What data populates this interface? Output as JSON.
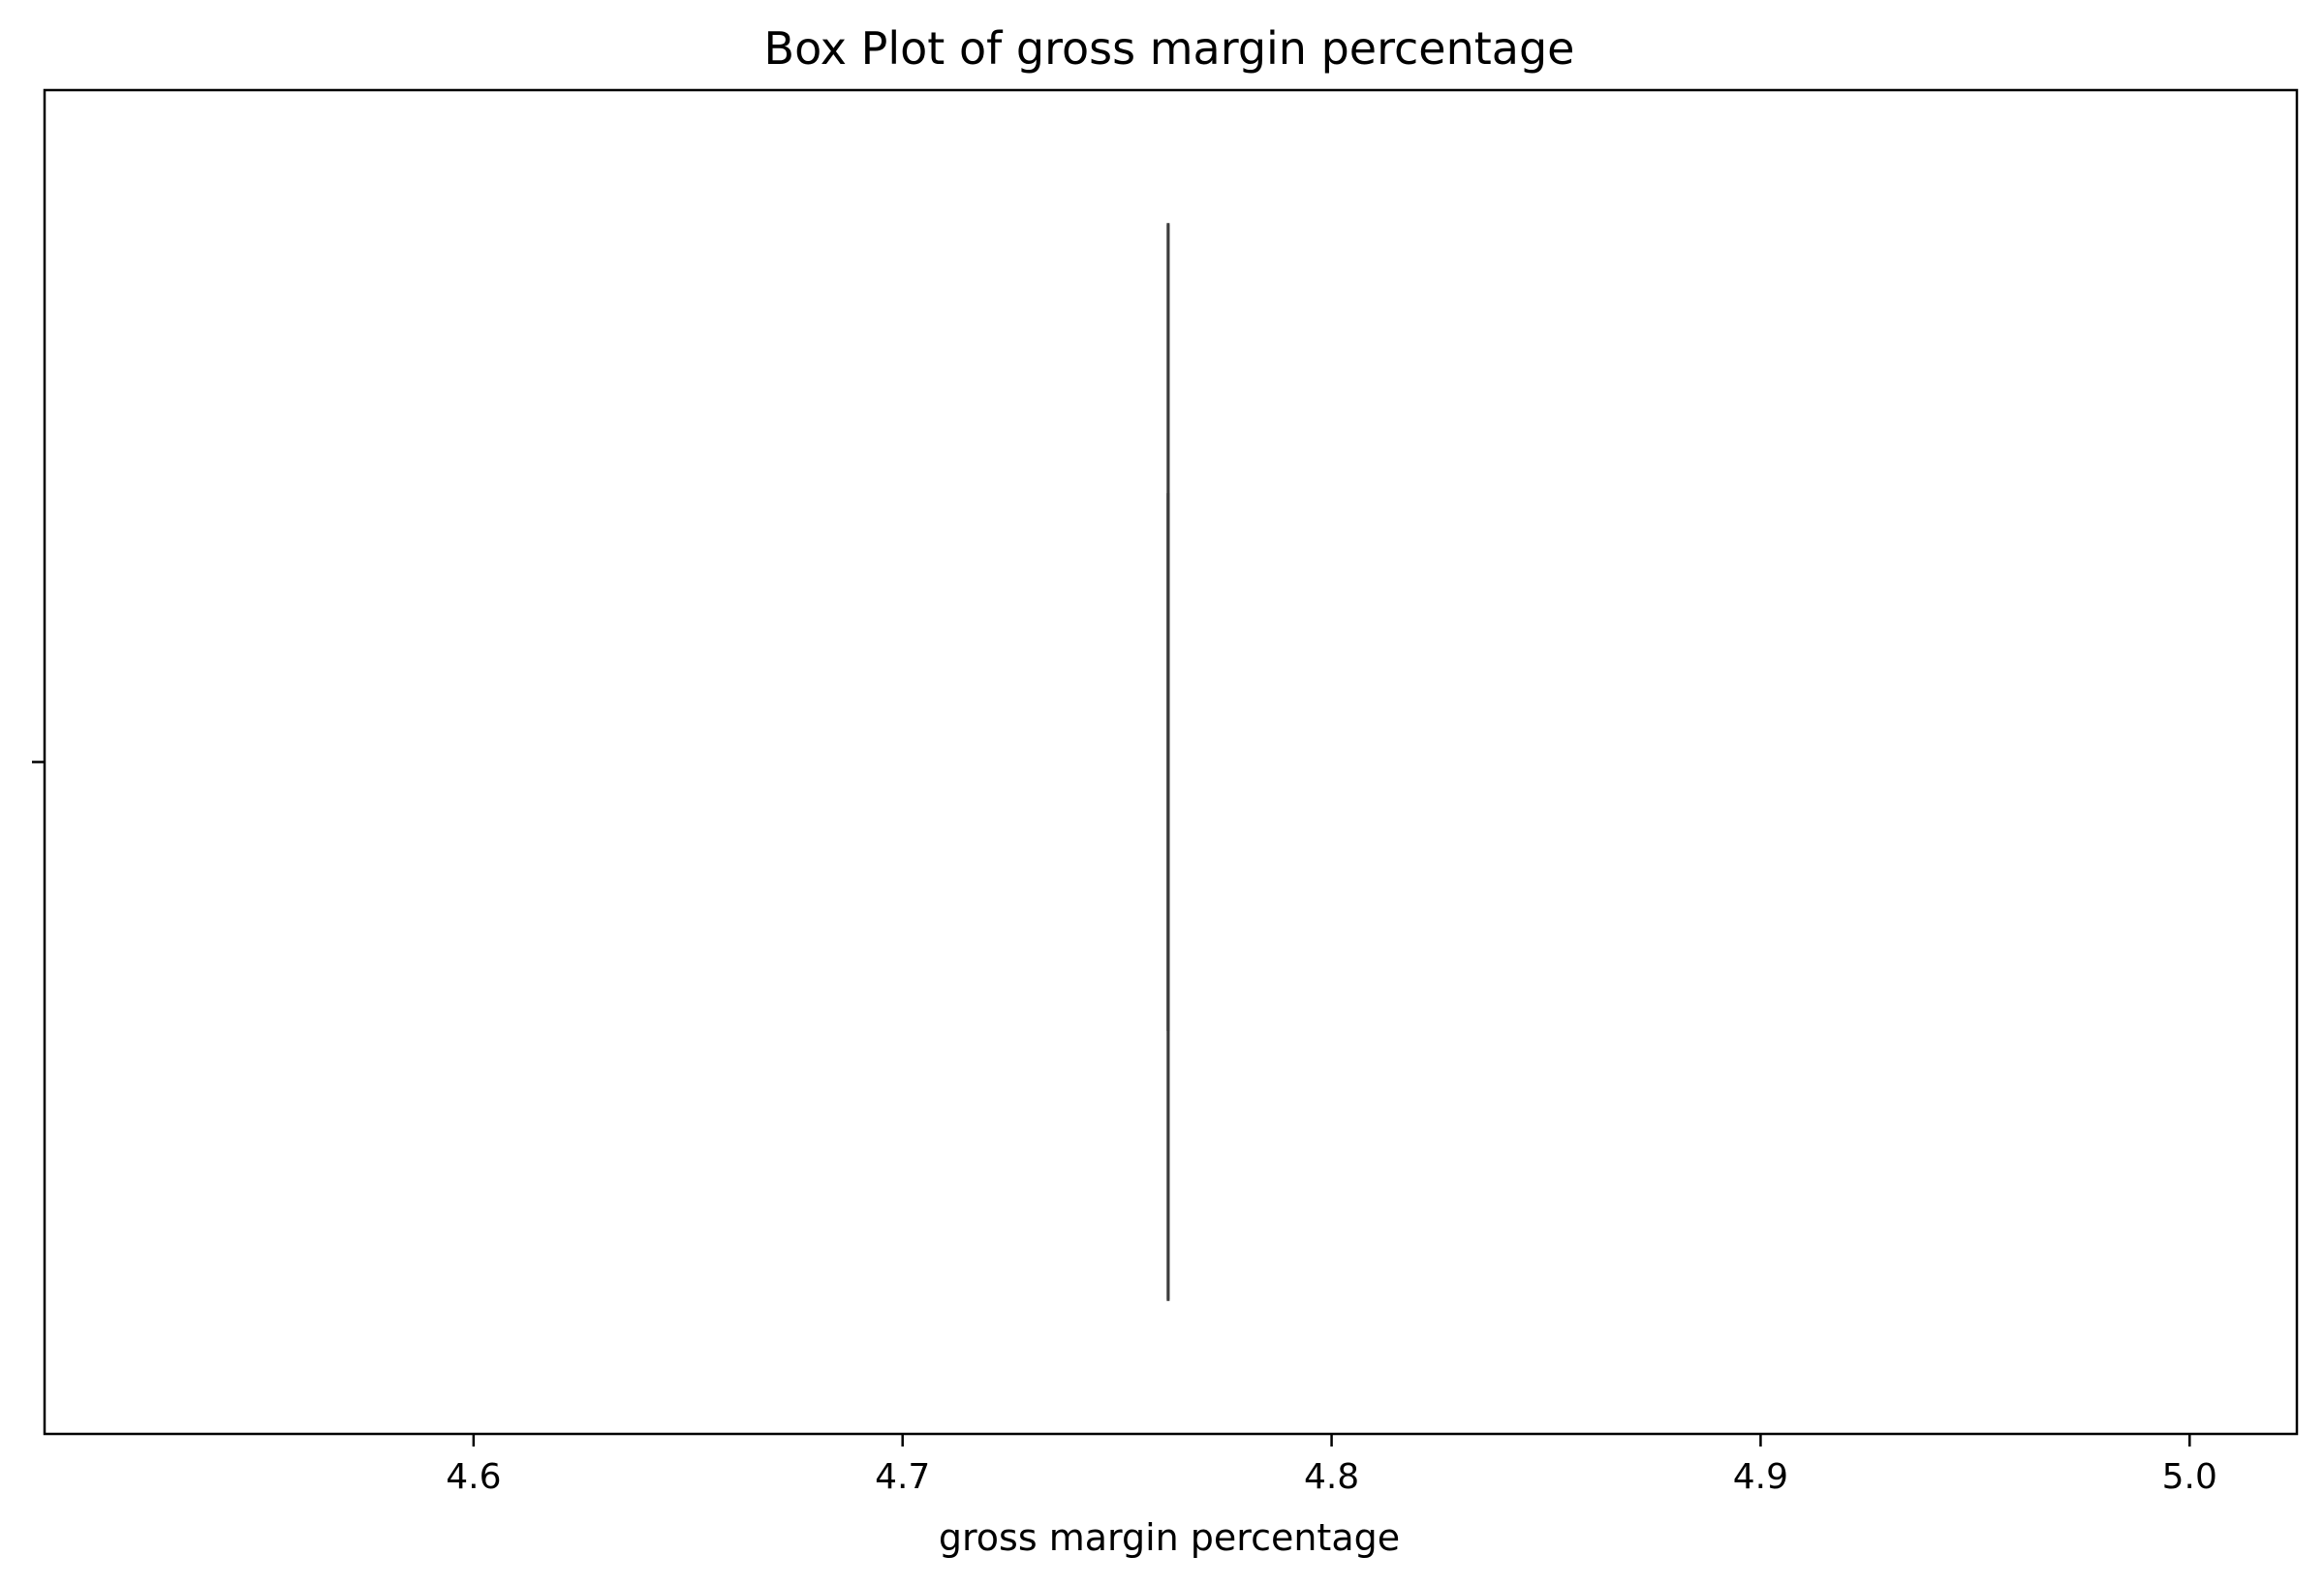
{
  "chart_data": {
    "type": "box",
    "title": "Box Plot of gross margin percentage",
    "xlabel": "gross margin percentage",
    "ylabel": "",
    "orientation": "horizontal",
    "xlim": [
      4.5,
      5.025
    ],
    "x_ticks": [
      4.6,
      4.7,
      4.8,
      4.9,
      5.0
    ],
    "x_tick_labels": [
      "4.6",
      "4.7",
      "4.8",
      "4.9",
      "5.0"
    ],
    "grid": false,
    "series": [
      {
        "min": 4.761905,
        "q1": 4.761905,
        "median": 4.761905,
        "q3": 4.761905,
        "max": 4.761905
      }
    ],
    "colors": {
      "axes": "#000000",
      "box_line": "#3d3d3d"
    }
  }
}
